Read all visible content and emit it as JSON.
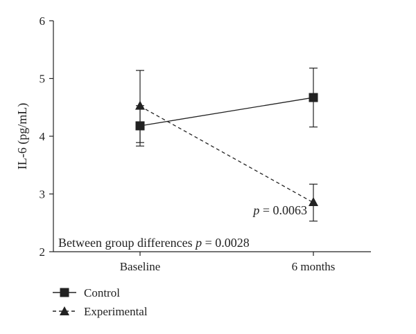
{
  "chart_data": {
    "type": "line",
    "ylabel": "IL-6 (pg/mL)",
    "xlabel": "",
    "categories": [
      "Baseline",
      "6 months"
    ],
    "ylim": [
      2,
      6
    ],
    "yticks": [
      "2",
      "3",
      "4",
      "5",
      "6"
    ],
    "grid": false,
    "legend_position": "bottom-left",
    "series": [
      {
        "name": "Control",
        "marker": "square",
        "line_style": "solid",
        "values": [
          4.18,
          4.67
        ],
        "err_low": [
          3.83,
          4.16
        ],
        "err_high": [
          4.53,
          5.18
        ]
      },
      {
        "name": "Experimental",
        "marker": "triangle",
        "line_style": "dashed",
        "values": [
          4.52,
          2.85
        ],
        "err_low": [
          3.89,
          2.53
        ],
        "err_high": [
          5.14,
          3.17
        ]
      }
    ],
    "annotations": {
      "point_p_prefix": "p",
      "point_p_value": " = 0.0063",
      "group_text": "Between group differences ",
      "group_p_prefix": "p",
      "group_p_value": " = 0.0028"
    }
  }
}
